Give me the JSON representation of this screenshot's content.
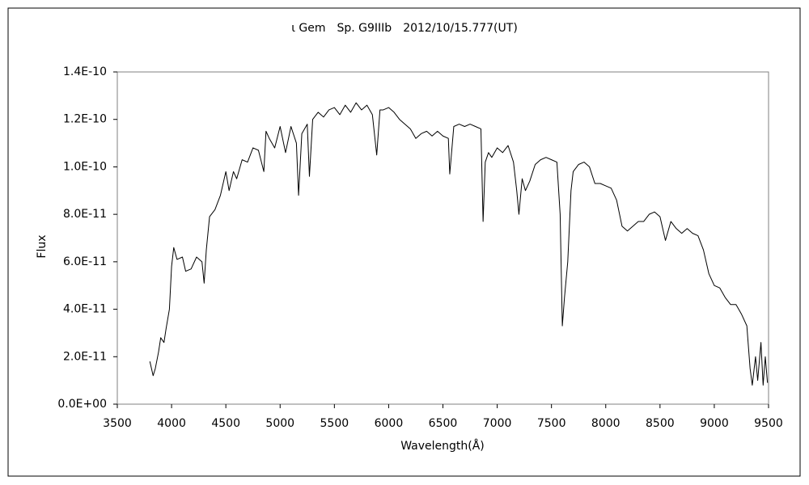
{
  "chart_data": {
    "type": "line",
    "title": "ι Gem　Sp. G9IIIb　2012/10/15.777(UT)",
    "x_label": "Wavelength(Å)",
    "y_label": "Flux",
    "xlim": [
      3500,
      9500
    ],
    "xticks": [
      3500,
      4000,
      4500,
      5000,
      5500,
      6000,
      6500,
      7000,
      7500,
      8000,
      8500,
      9000,
      9500
    ],
    "ylim": [
      0,
      1.4e-10
    ],
    "yticks": [
      {
        "value": 0,
        "label": "0.0E+00"
      },
      {
        "value": 2e-11,
        "label": "2.0E-11"
      },
      {
        "value": 4e-11,
        "label": "4.0E-11"
      },
      {
        "value": 6e-11,
        "label": "6.0E-11"
      },
      {
        "value": 8e-11,
        "label": "8.0E-11"
      },
      {
        "value": 1e-10,
        "label": "1.0E-10"
      },
      {
        "value": 1.2e-10,
        "label": "1.2E-10"
      },
      {
        "value": 1.4e-10,
        "label": "1.4E-10"
      }
    ],
    "grid": false,
    "series": [
      {
        "color": "#000000",
        "x": [
          3800,
          3830,
          3850,
          3880,
          3900,
          3930,
          3950,
          3980,
          4000,
          4020,
          4050,
          4100,
          4130,
          4180,
          4230,
          4280,
          4300,
          4320,
          4350,
          4400,
          4450,
          4500,
          4530,
          4570,
          4600,
          4650,
          4700,
          4750,
          4800,
          4850,
          4870,
          4900,
          4950,
          5000,
          5050,
          5100,
          5150,
          5170,
          5200,
          5250,
          5270,
          5300,
          5350,
          5400,
          5450,
          5500,
          5550,
          5600,
          5650,
          5700,
          5750,
          5800,
          5850,
          5890,
          5920,
          5950,
          6000,
          6050,
          6100,
          6150,
          6200,
          6250,
          6300,
          6350,
          6400,
          6450,
          6500,
          6550,
          6563,
          6600,
          6650,
          6700,
          6750,
          6800,
          6850,
          6870,
          6890,
          6920,
          6950,
          7000,
          7050,
          7100,
          7150,
          7180,
          7200,
          7230,
          7260,
          7300,
          7350,
          7400,
          7450,
          7500,
          7550,
          7580,
          7600,
          7620,
          7650,
          7680,
          7700,
          7750,
          7800,
          7850,
          7900,
          7950,
          8000,
          8050,
          8100,
          8150,
          8200,
          8250,
          8300,
          8350,
          8400,
          8450,
          8500,
          8550,
          8600,
          8650,
          8700,
          8750,
          8800,
          8850,
          8900,
          8950,
          9000,
          9050,
          9100,
          9150,
          9200,
          9250,
          9300,
          9330,
          9350,
          9380,
          9400,
          9430,
          9450,
          9470,
          9490
        ],
        "values": [
          1.8e-11,
          1.2e-11,
          1.5e-11,
          2.2e-11,
          2.8e-11,
          2.6e-11,
          3.2e-11,
          4e-11,
          5.8e-11,
          6.6e-11,
          6.1e-11,
          6.2e-11,
          5.6e-11,
          5.7e-11,
          6.2e-11,
          6e-11,
          5.1e-11,
          6.5e-11,
          7.9e-11,
          8.2e-11,
          8.8e-11,
          9.8e-11,
          9e-11,
          9.8e-11,
          9.5e-11,
          1.03e-10,
          1.02e-10,
          1.08e-10,
          1.07e-10,
          9.8e-11,
          1.15e-10,
          1.12e-10,
          1.08e-10,
          1.17e-10,
          1.06e-10,
          1.17e-10,
          1.1e-10,
          8.8e-11,
          1.14e-10,
          1.18e-10,
          9.6e-11,
          1.2e-10,
          1.23e-10,
          1.21e-10,
          1.24e-10,
          1.25e-10,
          1.22e-10,
          1.26e-10,
          1.23e-10,
          1.27e-10,
          1.24e-10,
          1.26e-10,
          1.22e-10,
          1.05e-10,
          1.24e-10,
          1.24e-10,
          1.25e-10,
          1.23e-10,
          1.2e-10,
          1.18e-10,
          1.16e-10,
          1.12e-10,
          1.14e-10,
          1.15e-10,
          1.13e-10,
          1.15e-10,
          1.13e-10,
          1.12e-10,
          9.7e-11,
          1.17e-10,
          1.18e-10,
          1.17e-10,
          1.18e-10,
          1.17e-10,
          1.16e-10,
          7.7e-11,
          1.02e-10,
          1.06e-10,
          1.04e-10,
          1.08e-10,
          1.06e-10,
          1.09e-10,
          1.02e-10,
          9e-11,
          8e-11,
          9.5e-11,
          9e-11,
          9.4e-11,
          1.01e-10,
          1.03e-10,
          1.04e-10,
          1.03e-10,
          1.02e-10,
          8e-11,
          3.3e-11,
          4.5e-11,
          6e-11,
          9e-11,
          9.8e-11,
          1.01e-10,
          1.02e-10,
          1e-10,
          9.3e-11,
          9.3e-11,
          9.2e-11,
          9.1e-11,
          8.6e-11,
          7.5e-11,
          7.3e-11,
          7.5e-11,
          7.7e-11,
          7.7e-11,
          8e-11,
          8.1e-11,
          7.9e-11,
          6.9e-11,
          7.7e-11,
          7.4e-11,
          7.2e-11,
          7.4e-11,
          7.2e-11,
          7.1e-11,
          6.5e-11,
          5.5e-11,
          5e-11,
          4.9e-11,
          4.5e-11,
          4.2e-11,
          4.2e-11,
          3.8e-11,
          3.3e-11,
          1.5e-11,
          8e-12,
          2e-11,
          1e-11,
          2.6e-11,
          8e-12,
          2e-11,
          9e-12
        ]
      }
    ]
  }
}
